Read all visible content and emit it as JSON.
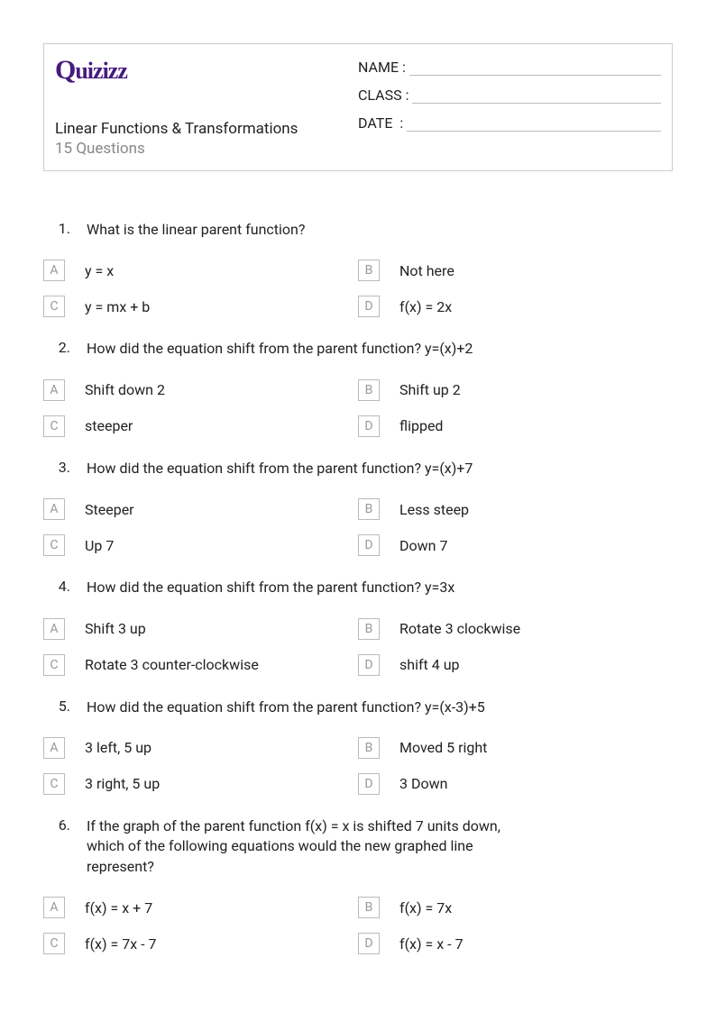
{
  "logo_text": "Quizizz",
  "quiz_title": "Linear Functions & Transformations",
  "quiz_subtitle": "15 Questions",
  "info_fields": {
    "name": "NAME :",
    "class": "CLASS :",
    "date": "DATE  :"
  },
  "colors": {
    "logo": "#461b7e",
    "text": "#222222",
    "muted": "#888888",
    "border": "#cccccc",
    "box_border": "#bbbbbb",
    "box_letter": "#999999",
    "background": "#ffffff"
  },
  "questions": [
    {
      "num": "1.",
      "text": "What is the linear parent function?",
      "answers": {
        "A": "y = x",
        "B": "Not here",
        "C": "y = mx + b",
        "D": "f(x) = 2x"
      }
    },
    {
      "num": "2.",
      "text": "How did the equation shift from the parent function? y=(x)+2",
      "answers": {
        "A": "Shift down 2",
        "B": "Shift up 2",
        "C": "steeper",
        "D": "flipped"
      }
    },
    {
      "num": "3.",
      "text": "How did the equation shift from the parent function? y=(x)+7",
      "answers": {
        "A": "Steeper",
        "B": "Less steep",
        "C": "Up 7",
        "D": "Down 7"
      }
    },
    {
      "num": "4.",
      "text": "How did the equation shift from the parent function? y=3x",
      "answers": {
        "A": "Shift 3 up",
        "B": "Rotate 3 clockwise",
        "C": "Rotate 3 counter-clockwise",
        "D": "shift 4 up"
      }
    },
    {
      "num": "5.",
      "text": "How did the equation shift from the parent function? y=(x-3)+5",
      "answers": {
        "A": "3 left, 5 up",
        "B": "Moved 5 right",
        "C": "3 right, 5 up",
        "D": "3 Down"
      }
    },
    {
      "num": "6.",
      "text": "If the graph of the parent function f(x) = x is shifted 7 units down, which of the following equations would the new graphed line represent?",
      "answers": {
        "A": "f(x) = x + 7",
        "B": "f(x) = 7x",
        "C": "f(x) = 7x - 7",
        "D": "f(x) = x - 7"
      }
    }
  ]
}
